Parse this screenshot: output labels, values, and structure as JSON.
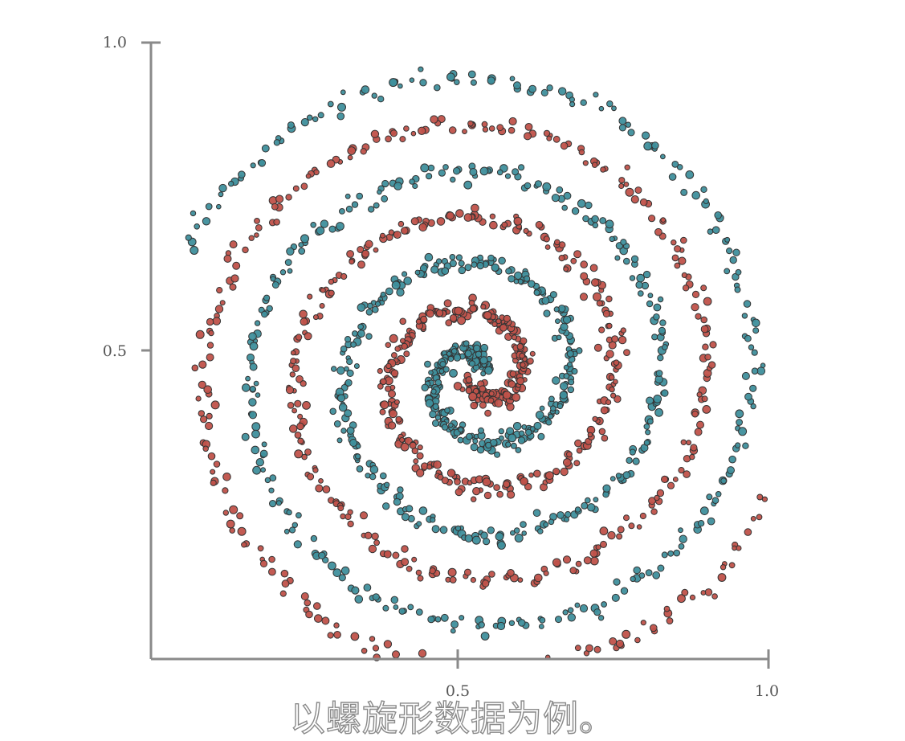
{
  "chart_data": {
    "type": "scatter",
    "title": "",
    "xlabel": "",
    "ylabel": "",
    "xlim": [
      0.0,
      1.0
    ],
    "ylim": [
      0.0,
      1.0
    ],
    "x_ticks": [
      {
        "value": 0.5,
        "label": "0.5"
      },
      {
        "value": 1.0,
        "label": "1.0"
      }
    ],
    "y_ticks": [
      {
        "value": 0.5,
        "label": "0.5"
      },
      {
        "value": 1.0,
        "label": "1.0"
      }
    ],
    "grid": false,
    "legend": "none",
    "colors": {
      "class_a": "#3f8f9c",
      "class_b": "#c0524a",
      "edge": "#333333"
    },
    "spiral": {
      "center": [
        0.53,
        0.46
      ],
      "arms": 2,
      "turns": 3.4,
      "max_radius": 0.51,
      "points_per_arm": 850,
      "noise": 0.008
    },
    "series": [
      {
        "color": "#3f8f9c",
        "points": [
          [
            0.58,
            0.38
          ],
          [
            0.66,
            0.42
          ],
          [
            0.67,
            0.52
          ],
          [
            0.6,
            0.58
          ],
          [
            0.48,
            0.59
          ],
          [
            0.38,
            0.54
          ],
          [
            0.35,
            0.46
          ],
          [
            0.38,
            0.36
          ],
          [
            0.46,
            0.3
          ],
          [
            0.56,
            0.27
          ],
          [
            0.66,
            0.3
          ],
          [
            0.75,
            0.37
          ],
          [
            0.79,
            0.47
          ],
          [
            0.78,
            0.57
          ],
          [
            0.71,
            0.66
          ],
          [
            0.6,
            0.71
          ],
          [
            0.46,
            0.72
          ],
          [
            0.33,
            0.69
          ],
          [
            0.24,
            0.61
          ],
          [
            0.18,
            0.5
          ],
          [
            0.18,
            0.38
          ],
          [
            0.22,
            0.27
          ],
          [
            0.31,
            0.18
          ],
          [
            0.43,
            0.12
          ],
          [
            0.56,
            0.11
          ],
          [
            0.7,
            0.14
          ],
          [
            0.81,
            0.21
          ],
          [
            0.88,
            0.31
          ],
          [
            0.91,
            0.44
          ],
          [
            0.89,
            0.57
          ],
          [
            0.84,
            0.68
          ],
          [
            0.74,
            0.77
          ],
          [
            0.61,
            0.83
          ],
          [
            0.46,
            0.84
          ],
          [
            0.31,
            0.81
          ],
          [
            0.19,
            0.73
          ],
          [
            0.1,
            0.62
          ],
          [
            0.06,
            0.49
          ],
          [
            0.07,
            0.34
          ],
          [
            0.12,
            0.22
          ],
          [
            0.22,
            0.12
          ],
          [
            0.34,
            0.05
          ],
          [
            0.48,
            0.03
          ],
          [
            0.62,
            0.04
          ],
          [
            0.2,
            0.88
          ],
          [
            0.15,
            0.82
          ],
          [
            0.1,
            0.74
          ],
          [
            0.05,
            0.56
          ],
          [
            0.06,
            0.43
          ],
          [
            0.11,
            0.29
          ]
        ]
      },
      {
        "color": "#c0524a",
        "points": [
          [
            0.48,
            0.44
          ],
          [
            0.4,
            0.47
          ],
          [
            0.36,
            0.57
          ],
          [
            0.41,
            0.66
          ],
          [
            0.51,
            0.71
          ],
          [
            0.61,
            0.7
          ],
          [
            0.7,
            0.64
          ],
          [
            0.74,
            0.54
          ],
          [
            0.73,
            0.43
          ],
          [
            0.67,
            0.33
          ],
          [
            0.58,
            0.28
          ],
          [
            0.47,
            0.26
          ],
          [
            0.36,
            0.29
          ],
          [
            0.27,
            0.35
          ],
          [
            0.21,
            0.45
          ],
          [
            0.2,
            0.56
          ],
          [
            0.23,
            0.67
          ],
          [
            0.3,
            0.77
          ],
          [
            0.4,
            0.83
          ],
          [
            0.52,
            0.86
          ],
          [
            0.64,
            0.85
          ],
          [
            0.75,
            0.8
          ],
          [
            0.84,
            0.71
          ],
          [
            0.9,
            0.61
          ],
          [
            0.93,
            0.48
          ],
          [
            0.92,
            0.36
          ],
          [
            0.87,
            0.24
          ],
          [
            0.79,
            0.15
          ],
          [
            0.69,
            0.08
          ],
          [
            0.46,
            0.89
          ],
          [
            0.33,
            0.87
          ],
          [
            0.22,
            0.8
          ],
          [
            0.14,
            0.7
          ],
          [
            0.09,
            0.58
          ],
          [
            0.1,
            0.45
          ],
          [
            0.14,
            0.34
          ],
          [
            0.3,
            0.2
          ],
          [
            0.41,
            0.17
          ],
          [
            0.54,
            0.18
          ],
          [
            0.67,
            0.22
          ],
          [
            0.78,
            0.3
          ],
          [
            0.84,
            0.4
          ],
          [
            0.86,
            0.52
          ],
          [
            0.83,
            0.64
          ],
          [
            0.76,
            0.73
          ],
          [
            0.66,
            0.79
          ],
          [
            0.53,
            0.81
          ],
          [
            0.95,
            0.53
          ],
          [
            0.99,
            0.46
          ],
          [
            0.98,
            0.33
          ]
        ]
      }
    ]
  },
  "caption": "以螺旋形数据为例。"
}
